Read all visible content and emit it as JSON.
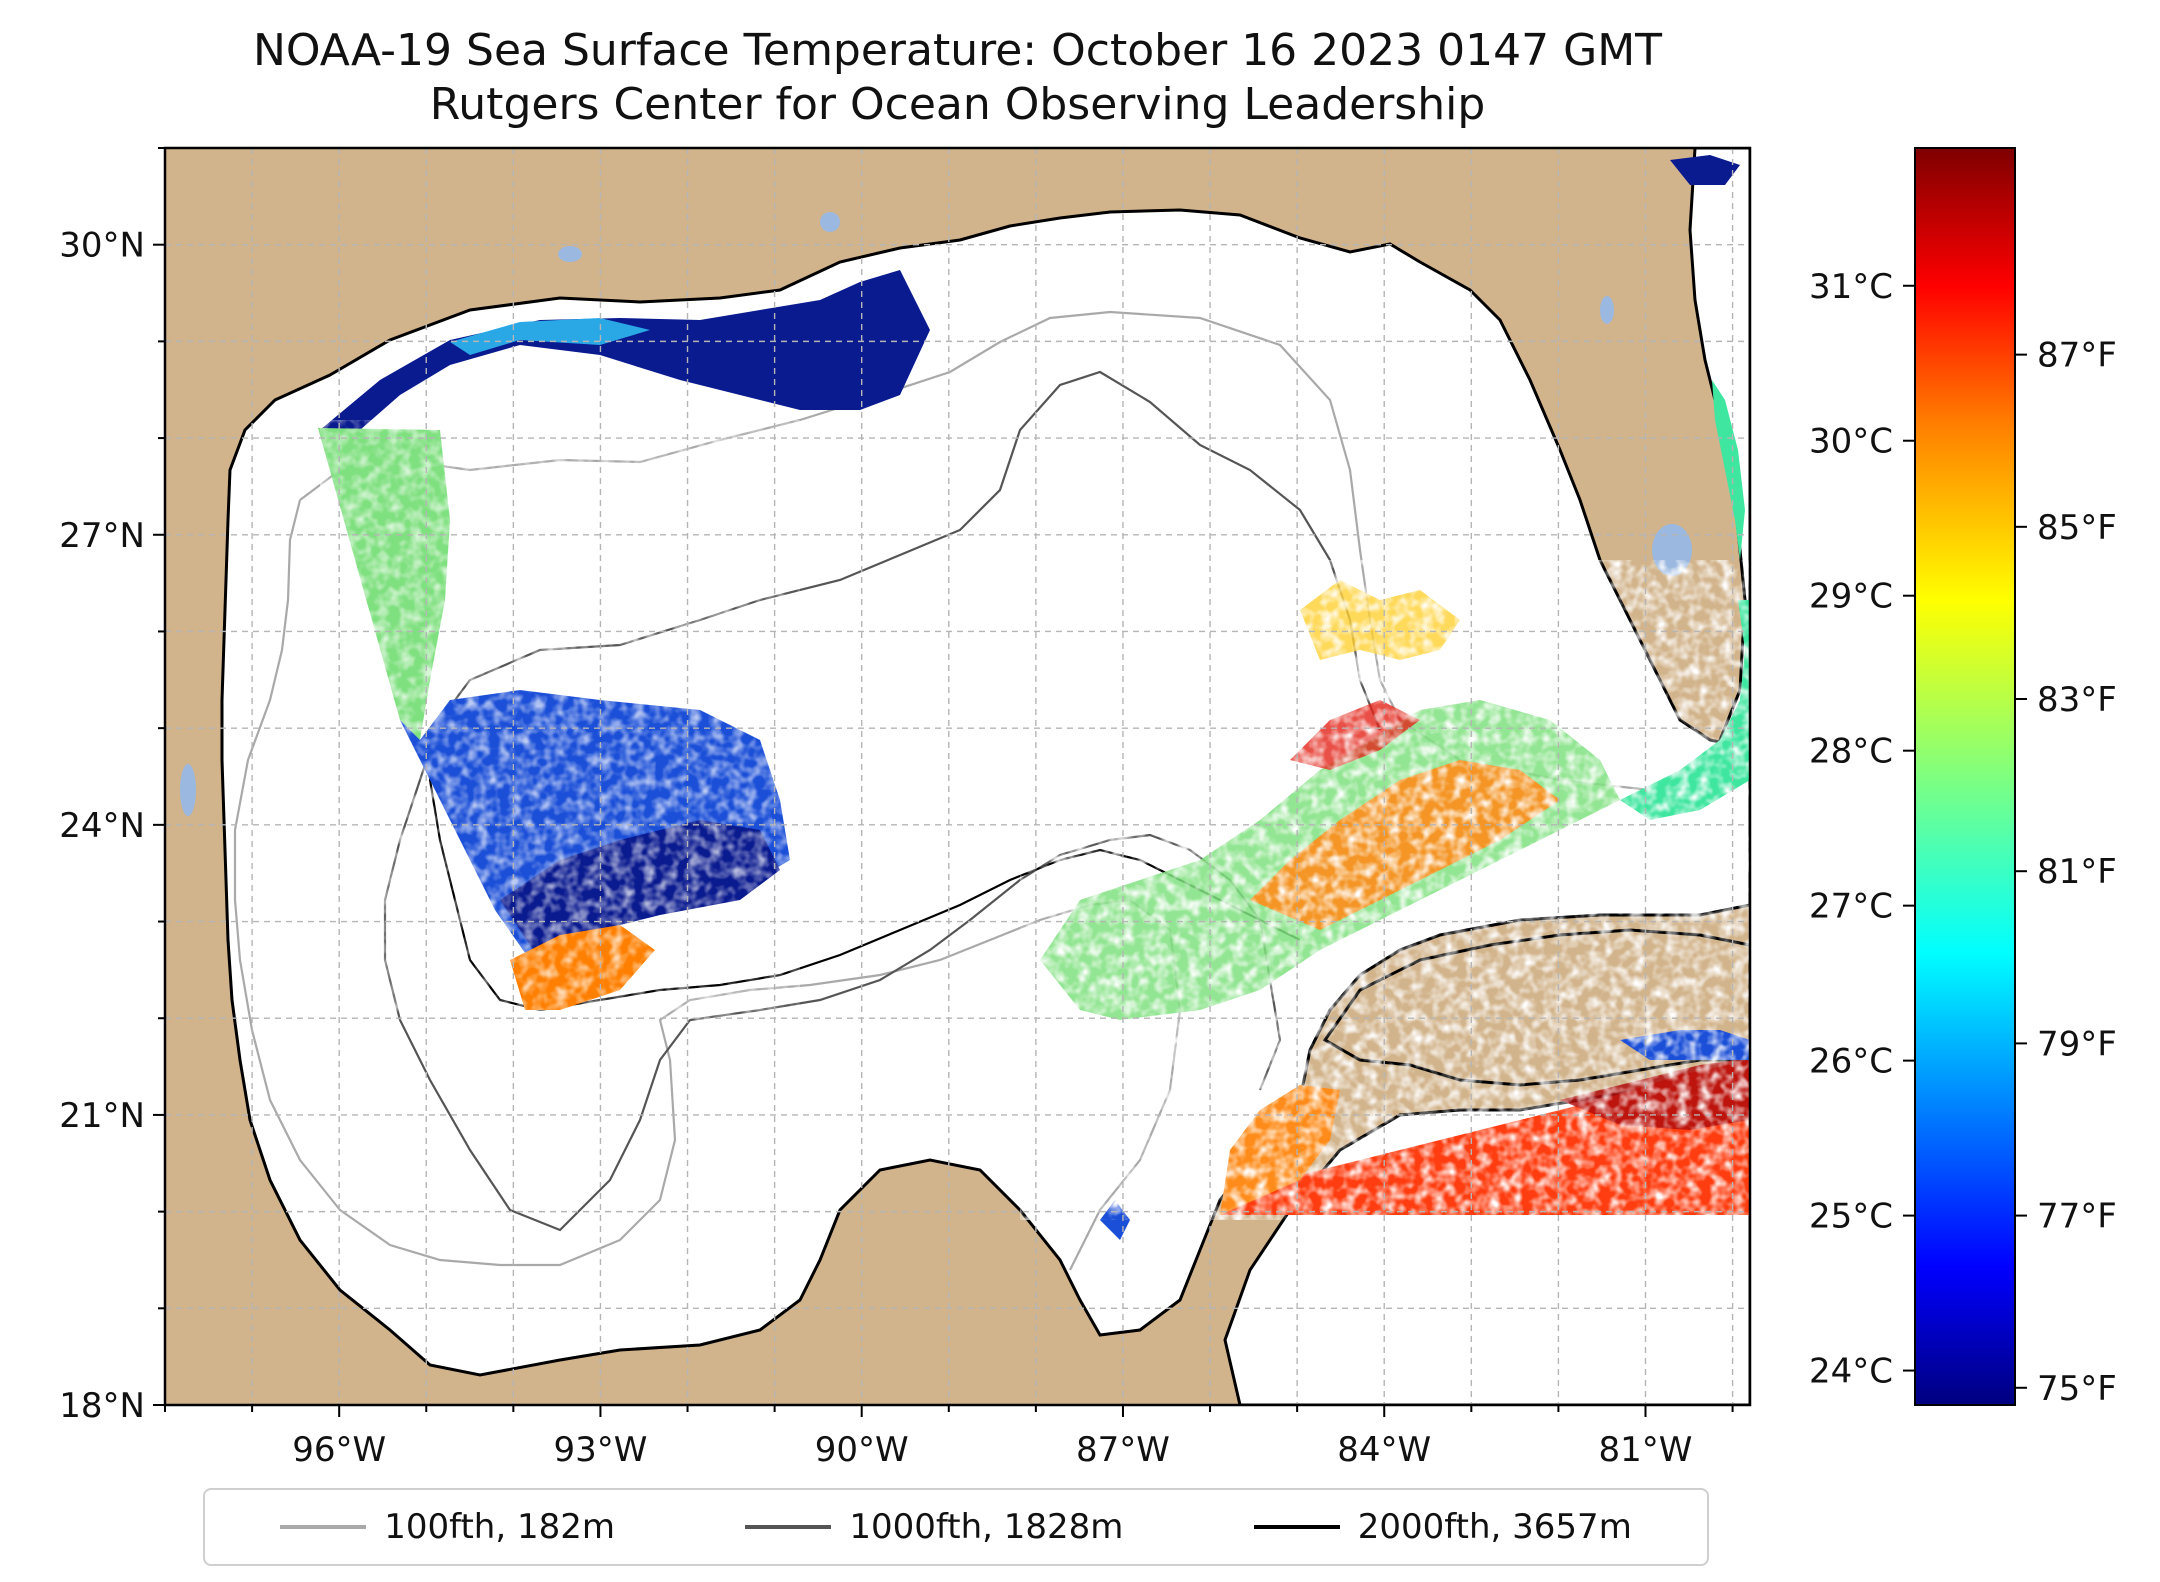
{
  "title": {
    "line1": "NOAA-19 Sea Surface Temperature: October 16 2023 0147 GMT",
    "line2": "Rutgers Center for Ocean Observing Leadership"
  },
  "map": {
    "extent": {
      "lon_min": -98.0,
      "lon_max": -79.8,
      "lat_min": 18.0,
      "lat_max": 31.0
    },
    "lat_ticks": [
      {
        "value": 30,
        "label": "30°N"
      },
      {
        "value": 27,
        "label": "27°N"
      },
      {
        "value": 24,
        "label": "24°N"
      },
      {
        "value": 21,
        "label": "21°N"
      },
      {
        "value": 18,
        "label": "18°N"
      }
    ],
    "lon_ticks": [
      {
        "value": -96,
        "label": "96°W"
      },
      {
        "value": -93,
        "label": "93°W"
      },
      {
        "value": -90,
        "label": "90°W"
      },
      {
        "value": -87,
        "label": "87°W"
      },
      {
        "value": -84,
        "label": "84°W"
      },
      {
        "value": -81,
        "label": "81°W"
      }
    ],
    "colors": {
      "land": "#d2b48c",
      "lakes": "#9ab8e0",
      "ocean": "#ffffff",
      "grid": "#b5b5b5"
    },
    "colormap": "jet"
  },
  "colorbar": {
    "celsius_ticks": [
      {
        "value": 31,
        "label": "31°C"
      },
      {
        "value": 30,
        "label": "30°C"
      },
      {
        "value": 29,
        "label": "29°C"
      },
      {
        "value": 28,
        "label": "28°C"
      },
      {
        "value": 27,
        "label": "27°C"
      },
      {
        "value": 26,
        "label": "26°C"
      },
      {
        "value": 25,
        "label": "25°C"
      },
      {
        "value": 24,
        "label": "24°C"
      }
    ],
    "fahrenheit_ticks": [
      {
        "value": 87,
        "label": "87°F"
      },
      {
        "value": 85,
        "label": "85°F"
      },
      {
        "value": 83,
        "label": "83°F"
      },
      {
        "value": 81,
        "label": "81°F"
      },
      {
        "value": 79,
        "label": "79°F"
      },
      {
        "value": 77,
        "label": "77°F"
      },
      {
        "value": 75,
        "label": "75°F"
      }
    ],
    "range_f": [
      74.8,
      89.4
    ],
    "colors": [
      "#00007f",
      "#0000ff",
      "#007fff",
      "#00ffff",
      "#7fff7f",
      "#ffff00",
      "#ff7f00",
      "#ff0000",
      "#7f0000"
    ]
  },
  "legend": {
    "items": [
      {
        "label": "100fth, 182m",
        "color": "#a9a9a9"
      },
      {
        "label": "1000fth, 1828m",
        "color": "#555555"
      },
      {
        "label": "2000fth, 3657m",
        "color": "#000000"
      }
    ]
  }
}
